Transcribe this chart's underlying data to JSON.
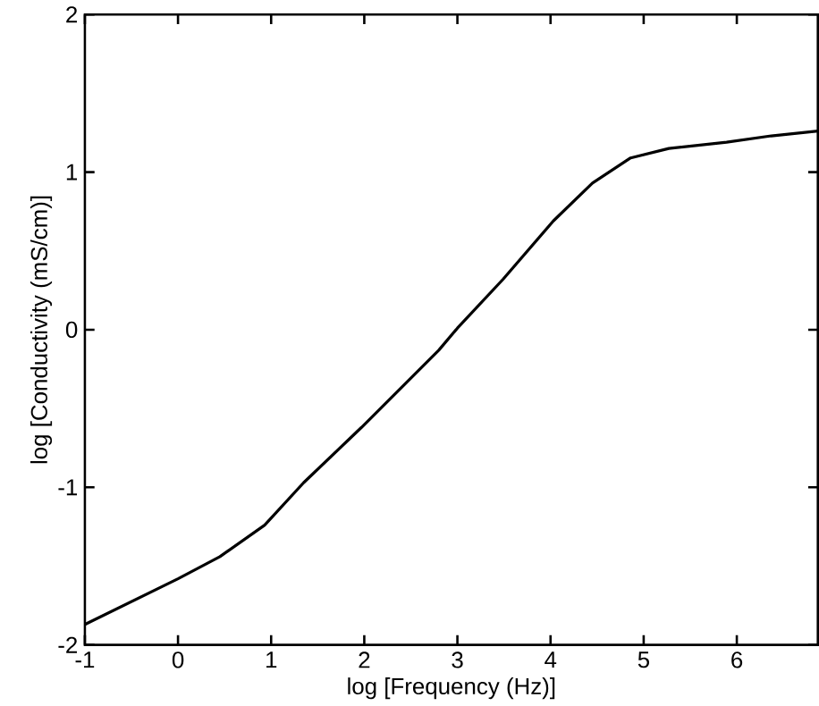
{
  "chart_data": {
    "type": "line",
    "xlabel": "log [Frequency (Hz)]",
    "ylabel": "log [Conductivity (mS/cm)]",
    "xlim": [
      -1,
      6.87
    ],
    "ylim": [
      -2,
      2
    ],
    "xticks": [
      -1,
      0,
      1,
      2,
      3,
      4,
      5,
      6
    ],
    "yticks": [
      -2,
      -1,
      0,
      1,
      2
    ],
    "marker": "none",
    "line_style": "solid",
    "series": [
      {
        "color": "#000000",
        "x": [
          -1,
          0,
          0.45,
          0.93,
          1.35,
          1.97,
          2.8,
          3.0,
          3.49,
          4.03,
          4.45,
          4.86,
          5.27,
          5.89,
          6.37,
          6.87
        ],
        "values": [
          -1.87,
          -1.58,
          -1.44,
          -1.24,
          -0.97,
          -0.62,
          -0.13,
          0.01,
          0.32,
          0.69,
          0.93,
          1.09,
          1.15,
          1.19,
          1.23,
          1.26
        ]
      }
    ]
  }
}
